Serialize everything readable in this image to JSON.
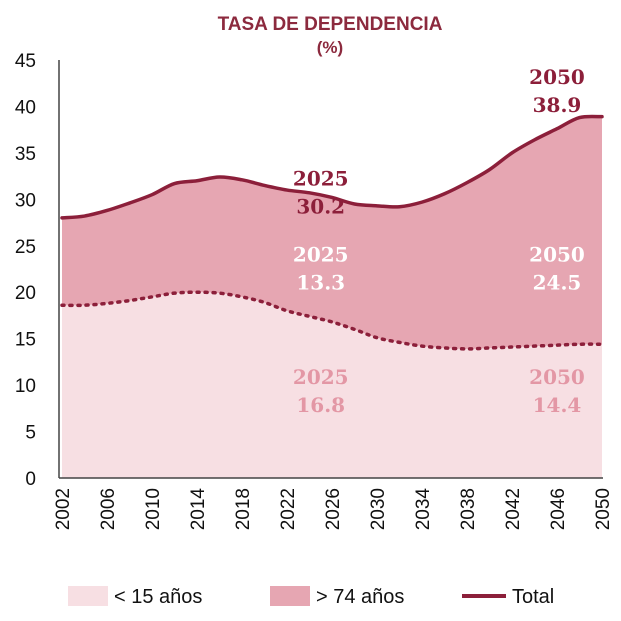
{
  "chart_data": {
    "type": "area",
    "title": "TASA DE DEPENDENCIA",
    "subtitle": "(%)",
    "xlabel": "",
    "ylabel": "",
    "xlim": [
      2002,
      2050
    ],
    "ylim": [
      0,
      45
    ],
    "grid": false,
    "x_ticks": [
      "2002",
      "2006",
      "2010",
      "2014",
      "2018",
      "2022",
      "2026",
      "2030",
      "2034",
      "2038",
      "2042",
      "2046",
      "2050"
    ],
    "y_ticks": [
      "0",
      "5",
      "10",
      "15",
      "20",
      "25",
      "30",
      "35",
      "40",
      "45"
    ],
    "x": [
      2002,
      2004,
      2006,
      2008,
      2010,
      2012,
      2014,
      2016,
      2018,
      2020,
      2022,
      2024,
      2026,
      2028,
      2030,
      2032,
      2034,
      2036,
      2038,
      2040,
      2042,
      2044,
      2046,
      2048,
      2050
    ],
    "series": [
      {
        "name": "< 15 años",
        "style": "area-dotted-top",
        "color": "#f7dfe3",
        "values": [
          18.6,
          18.6,
          18.8,
          19.1,
          19.5,
          19.9,
          20.0,
          19.9,
          19.5,
          18.9,
          18.0,
          17.4,
          16.8,
          16.0,
          15.1,
          14.6,
          14.2,
          14.0,
          13.9,
          14.0,
          14.1,
          14.2,
          14.3,
          14.4,
          14.4
        ]
      },
      {
        "name": "> 74 años",
        "style": "area-stacked",
        "color": "#e6a6b2",
        "values": [
          9.4,
          9.6,
          10.0,
          10.5,
          11.0,
          11.8,
          12.0,
          12.5,
          12.6,
          12.6,
          13.0,
          13.3,
          13.4,
          13.5,
          14.2,
          14.6,
          15.5,
          16.6,
          17.9,
          19.2,
          20.9,
          22.2,
          23.3,
          24.4,
          24.5
        ]
      },
      {
        "name": "Total",
        "style": "line",
        "color": "#8c1f3a",
        "values": [
          28.0,
          28.2,
          28.8,
          29.6,
          30.5,
          31.7,
          32.0,
          32.4,
          32.1,
          31.5,
          31.0,
          30.7,
          30.2,
          29.5,
          29.3,
          29.2,
          29.7,
          30.6,
          31.8,
          33.2,
          35.0,
          36.4,
          37.6,
          38.8,
          38.9
        ]
      }
    ],
    "annotations": [
      {
        "year_label": "2025",
        "value_label": "30.2",
        "x": 2025,
        "y": 31.5,
        "color": "#8c1f3a"
      },
      {
        "year_label": "2050",
        "value_label": "38.9",
        "x": 2046,
        "y": 42.4,
        "color": "#8c1f3a"
      },
      {
        "year_label": "2025",
        "value_label": "13.3",
        "x": 2025,
        "y": 23.3,
        "color": "#ffffff"
      },
      {
        "year_label": "2050",
        "value_label": "24.5",
        "x": 2046,
        "y": 23.3,
        "color": "#ffffff"
      },
      {
        "year_label": "2025",
        "value_label": "16.8",
        "x": 2025,
        "y": 10.1,
        "color": "#e397a5"
      },
      {
        "year_label": "2050",
        "value_label": "14.4",
        "x": 2046,
        "y": 10.1,
        "color": "#e397a5"
      }
    ],
    "legend": {
      "placement": "bottom",
      "items": [
        {
          "label": "< 15 años",
          "swatch": "box",
          "color": "#f7dfe3"
        },
        {
          "label": "> 74 años",
          "swatch": "box",
          "color": "#e6a6b2"
        },
        {
          "label": "Total",
          "swatch": "line",
          "color": "#8c1f3a"
        }
      ]
    }
  }
}
